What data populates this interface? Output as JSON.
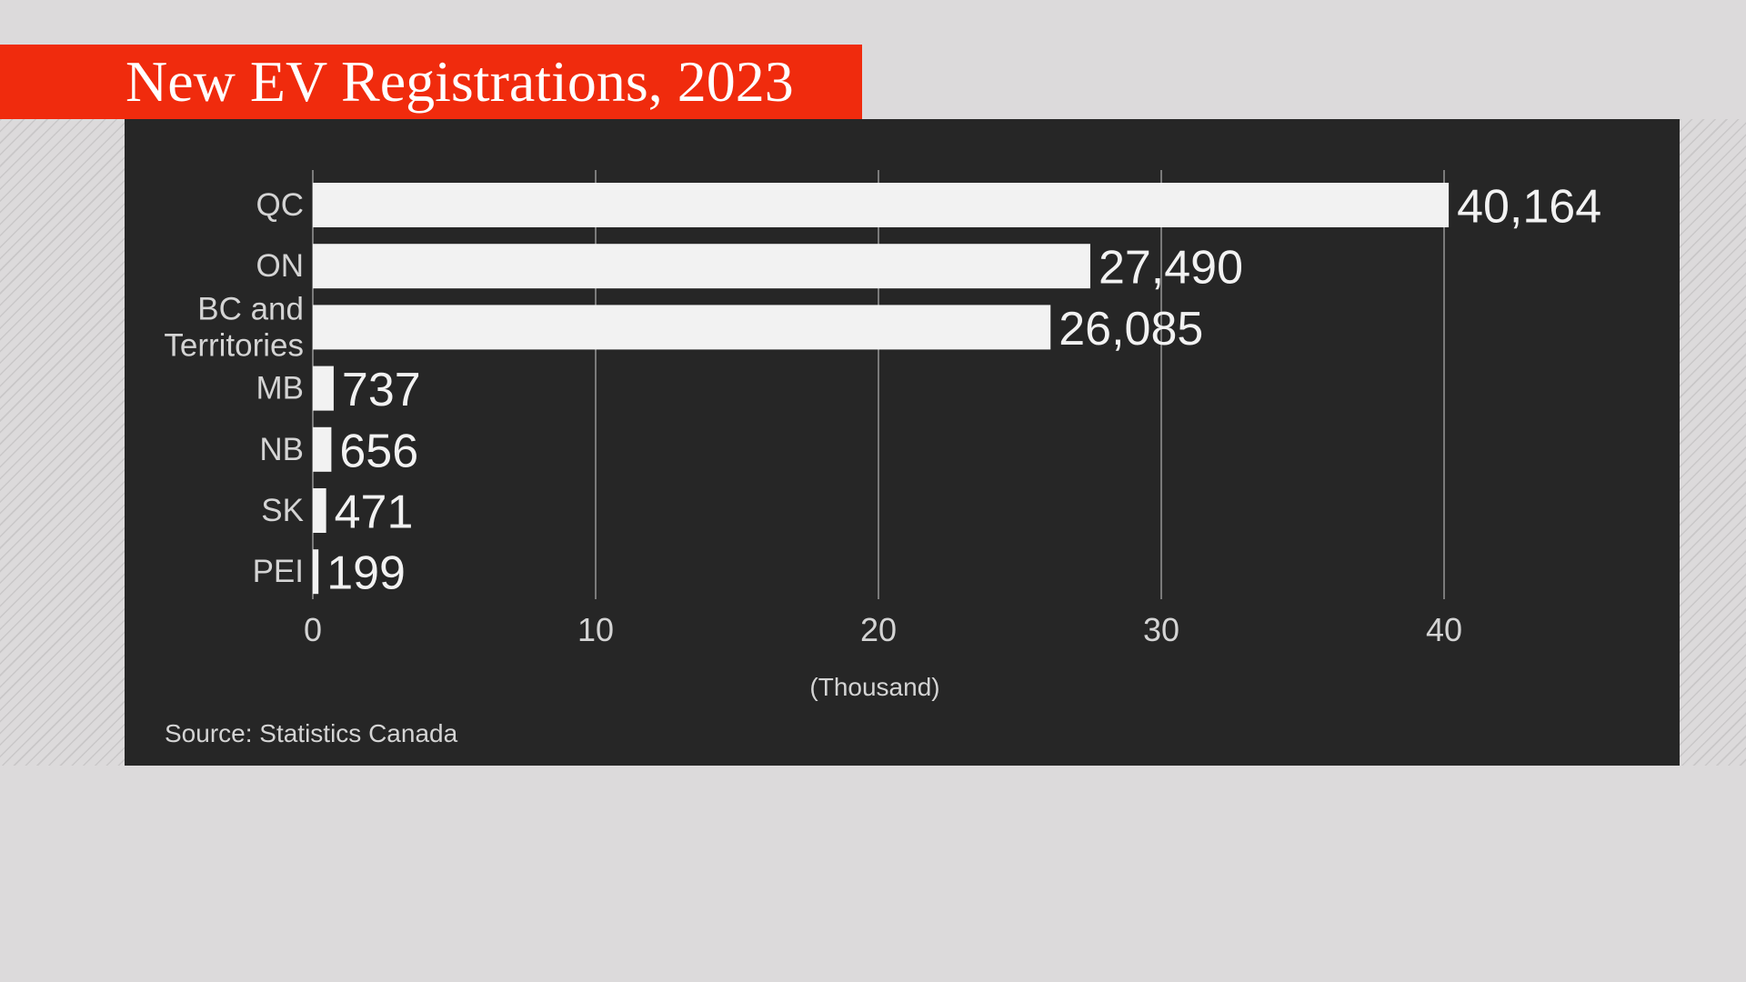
{
  "title": "New EV Registrations, 2023",
  "source": "Source: Statistics Canada",
  "colors": {
    "page_background": "#dcdadb",
    "title_banner": "#f02b0d",
    "chart_background": "#262626",
    "bar": "#f2f2f2",
    "text": "#d4d4d4"
  },
  "chart_data": {
    "type": "bar",
    "orientation": "horizontal",
    "title": "New EV Registrations, 2023",
    "categories": [
      "QC",
      "ON",
      "BC and Territories",
      "MB",
      "NB",
      "SK",
      "PEI"
    ],
    "category_lines": [
      [
        "QC"
      ],
      [
        "ON"
      ],
      [
        "BC and",
        "Territories"
      ],
      [
        "MB"
      ],
      [
        "NB"
      ],
      [
        "SK"
      ],
      [
        "PEI"
      ]
    ],
    "values": [
      40164,
      27490,
      26085,
      737,
      656,
      471,
      199
    ],
    "data_labels": [
      "40,164",
      "27,490",
      "26,085",
      "737",
      "656",
      "471",
      "199"
    ],
    "xlabel": "(Thousand)",
    "ylabel": "",
    "xlim": [
      0,
      40000
    ],
    "x_ticks": [
      0,
      10000,
      20000,
      30000,
      40000
    ],
    "x_tick_labels": [
      "0",
      "10",
      "20",
      "30",
      "40"
    ],
    "grid": true,
    "legend": "none"
  }
}
